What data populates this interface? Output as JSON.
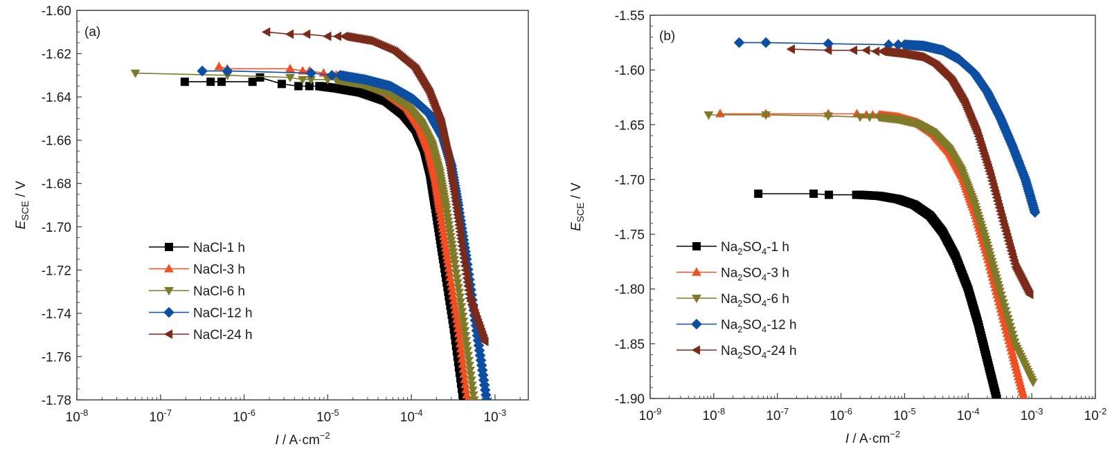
{
  "chart_data": [
    {
      "type": "line",
      "panel_label": "(a)",
      "xlabel": "I / A·cm⁻²",
      "xlabel_italic": "I",
      "xlabel_rest": " / A·cm",
      "xlabel_sup": "−2",
      "ylabel_italic": "E",
      "ylabel_sub": "SCE",
      "ylabel_rest": " / V",
      "xscale": "log",
      "xlim": [
        1e-08,
        0.0025
      ],
      "ylim": [
        -1.78,
        -1.6
      ],
      "xticks": [
        {
          "base": "10",
          "exp": "-8",
          "value": 1e-08
        },
        {
          "base": "10",
          "exp": "-7",
          "value": 1e-07
        },
        {
          "base": "10",
          "exp": "-6",
          "value": 1e-06
        },
        {
          "base": "10",
          "exp": "-5",
          "value": 1e-05
        },
        {
          "base": "10",
          "exp": "-4",
          "value": 0.0001
        },
        {
          "base": "10",
          "exp": "-3",
          "value": 0.001
        }
      ],
      "yticks": [
        "-1.60",
        "-1.62",
        "-1.64",
        "-1.66",
        "-1.68",
        "-1.70",
        "-1.72",
        "-1.74",
        "-1.76",
        "-1.78"
      ],
      "ytick_values": [
        -1.6,
        -1.62,
        -1.64,
        -1.66,
        -1.68,
        -1.7,
        -1.72,
        -1.74,
        -1.76,
        -1.78
      ],
      "legend_position": "lower-left",
      "grid": false,
      "series": [
        {
          "name": "NaCl-1 h",
          "marker": "square",
          "color": "#000000",
          "sparse_points": [
            [
              -6.71,
              -1.633
            ],
            [
              -6.4,
              -1.633
            ],
            [
              -6.27,
              -1.633
            ],
            [
              -5.9,
              -1.633
            ],
            [
              -5.81,
              -1.631
            ],
            [
              -5.55,
              -1.634
            ],
            [
              -5.35,
              -1.635
            ],
            [
              -5.22,
              -1.635
            ]
          ],
          "curve": [
            [
              -5.1,
              -1.635
            ],
            [
              -4.9,
              -1.636
            ],
            [
              -4.6,
              -1.638
            ],
            [
              -4.3,
              -1.642
            ],
            [
              -4.1,
              -1.648
            ],
            [
              -3.95,
              -1.655
            ],
            [
              -3.85,
              -1.664
            ],
            [
              -3.78,
              -1.675
            ],
            [
              -3.72,
              -1.69
            ],
            [
              -3.62,
              -1.715
            ],
            [
              -3.5,
              -1.745
            ],
            [
              -3.38,
              -1.78
            ]
          ]
        },
        {
          "name": "NaCl-3 h",
          "marker": "triangle-up",
          "color": "#F04E23",
          "sparse_points": [
            [
              -6.3,
              -1.626
            ],
            [
              -6.2,
              -1.627
            ],
            [
              -5.45,
              -1.627
            ],
            [
              -5.3,
              -1.628
            ],
            [
              -5.22,
              -1.628
            ],
            [
              -5.05,
              -1.629
            ]
          ],
          "curve": [
            [
              -4.9,
              -1.63
            ],
            [
              -4.6,
              -1.633
            ],
            [
              -4.3,
              -1.638
            ],
            [
              -4.05,
              -1.645
            ],
            [
              -3.9,
              -1.654
            ],
            [
              -3.8,
              -1.664
            ],
            [
              -3.72,
              -1.677
            ],
            [
              -3.66,
              -1.692
            ],
            [
              -3.56,
              -1.717
            ],
            [
              -3.44,
              -1.747
            ],
            [
              -3.33,
              -1.78
            ]
          ]
        },
        {
          "name": "NaCl-6 h",
          "marker": "triangle-down",
          "color": "#7F7A29",
          "sparse_points": [
            [
              -7.3,
              -1.629
            ],
            [
              -6.2,
              -1.63
            ],
            [
              -5.45,
              -1.631
            ],
            [
              -5.3,
              -1.632
            ],
            [
              -5.2,
              -1.632
            ],
            [
              -5.0,
              -1.632
            ]
          ],
          "curve": [
            [
              -4.9,
              -1.632
            ],
            [
              -4.6,
              -1.634
            ],
            [
              -4.3,
              -1.638
            ],
            [
              -4.05,
              -1.644
            ],
            [
              -3.88,
              -1.652
            ],
            [
              -3.75,
              -1.662
            ],
            [
              -3.66,
              -1.675
            ],
            [
              -3.58,
              -1.692
            ],
            [
              -3.48,
              -1.717
            ],
            [
              -3.36,
              -1.748
            ],
            [
              -3.25,
              -1.78
            ]
          ]
        },
        {
          "name": "NaCl-12 h",
          "marker": "diamond",
          "color": "#0B4EA2",
          "sparse_points": [
            [
              -6.5,
              -1.628
            ],
            [
              -6.2,
              -1.628
            ],
            [
              -5.2,
              -1.629
            ],
            [
              -4.95,
              -1.63
            ]
          ],
          "curve": [
            [
              -4.85,
              -1.63
            ],
            [
              -4.55,
              -1.632
            ],
            [
              -4.25,
              -1.635
            ],
            [
              -3.98,
              -1.641
            ],
            [
              -3.78,
              -1.648
            ],
            [
              -3.62,
              -1.659
            ],
            [
              -3.52,
              -1.672
            ],
            [
              -3.44,
              -1.69
            ],
            [
              -3.34,
              -1.715
            ],
            [
              -3.22,
              -1.748
            ],
            [
              -3.1,
              -1.78
            ]
          ]
        },
        {
          "name": "NaCl-24 h",
          "marker": "triangle-left",
          "color": "#7B2A1A",
          "sparse_points": [
            [
              -5.73,
              -1.61
            ],
            [
              -5.45,
              -1.611
            ],
            [
              -5.25,
              -1.611
            ],
            [
              -5.0,
              -1.612
            ],
            [
              -4.88,
              -1.612
            ]
          ],
          "curve": [
            [
              -4.8,
              -1.612
            ],
            [
              -4.5,
              -1.614
            ],
            [
              -4.2,
              -1.619
            ],
            [
              -3.95,
              -1.627
            ],
            [
              -3.78,
              -1.638
            ],
            [
              -3.64,
              -1.652
            ],
            [
              -3.55,
              -1.668
            ],
            [
              -3.48,
              -1.685
            ],
            [
              -3.4,
              -1.707
            ],
            [
              -3.3,
              -1.733
            ],
            [
              -3.12,
              -1.753
            ]
          ]
        }
      ]
    },
    {
      "type": "line",
      "panel_label": "(b)",
      "xlabel": "I / A·cm⁻²",
      "xlabel_italic": "I",
      "xlabel_rest": " / A·cm",
      "xlabel_sup": "−2",
      "ylabel_italic": "E",
      "ylabel_sub": "SCE",
      "ylabel_rest": " / V",
      "xscale": "log",
      "xlim": [
        1e-09,
        0.01
      ],
      "ylim": [
        -1.9,
        -1.55
      ],
      "xticks": [
        {
          "base": "10",
          "exp": "-9",
          "value": 1e-09
        },
        {
          "base": "10",
          "exp": "-8",
          "value": 1e-08
        },
        {
          "base": "10",
          "exp": "-7",
          "value": 1e-07
        },
        {
          "base": "10",
          "exp": "-6",
          "value": 1e-06
        },
        {
          "base": "10",
          "exp": "-5",
          "value": 1e-05
        },
        {
          "base": "10",
          "exp": "-4",
          "value": 0.0001
        },
        {
          "base": "10",
          "exp": "-3",
          "value": 0.001
        },
        {
          "base": "10",
          "exp": "-2",
          "value": 0.01
        }
      ],
      "yticks": [
        "-1.55",
        "-1.60",
        "-1.65",
        "-1.70",
        "-1.75",
        "-1.80",
        "-1.85",
        "-1.90"
      ],
      "ytick_values": [
        -1.55,
        -1.6,
        -1.65,
        -1.7,
        -1.75,
        -1.8,
        -1.85,
        -1.9
      ],
      "legend_position": "lower-left",
      "grid": false,
      "series": [
        {
          "name": "Na2SO4-1 h",
          "label_main": "Na",
          "label_sub1": "2",
          "label_mid": "SO",
          "label_sub2": "4",
          "label_tail": "-1 h",
          "marker": "square",
          "color": "#000000",
          "sparse_points": [
            [
              -7.3,
              -1.713
            ],
            [
              -6.43,
              -1.713
            ],
            [
              -6.19,
              -1.714
            ],
            [
              -5.76,
              -1.714
            ]
          ],
          "curve": [
            [
              -5.7,
              -1.714
            ],
            [
              -5.4,
              -1.715
            ],
            [
              -5.1,
              -1.718
            ],
            [
              -4.85,
              -1.723
            ],
            [
              -4.6,
              -1.733
            ],
            [
              -4.4,
              -1.748
            ],
            [
              -4.2,
              -1.77
            ],
            [
              -4.0,
              -1.8
            ],
            [
              -3.85,
              -1.83
            ],
            [
              -3.7,
              -1.865
            ],
            [
              -3.55,
              -1.9
            ]
          ]
        },
        {
          "name": "Na2SO4-3 h",
          "label_main": "Na",
          "label_sub1": "2",
          "label_mid": "SO",
          "label_sub2": "4",
          "label_tail": "-3 h",
          "marker": "triangle-up",
          "color": "#F04E23",
          "sparse_points": [
            [
              -7.9,
              -1.64
            ],
            [
              -7.18,
              -1.64
            ],
            [
              -6.2,
              -1.64
            ],
            [
              -5.75,
              -1.64
            ],
            [
              -5.6,
              -1.641
            ],
            [
              -5.5,
              -1.641
            ]
          ],
          "curve": [
            [
              -5.4,
              -1.641
            ],
            [
              -5.1,
              -1.643
            ],
            [
              -4.8,
              -1.648
            ],
            [
              -4.55,
              -1.658
            ],
            [
              -4.3,
              -1.675
            ],
            [
              -4.1,
              -1.697
            ],
            [
              -3.9,
              -1.73
            ],
            [
              -3.7,
              -1.77
            ],
            [
              -3.5,
              -1.815
            ],
            [
              -3.3,
              -1.86
            ],
            [
              -3.12,
              -1.9
            ]
          ]
        },
        {
          "name": "Na2SO4-6 h",
          "label_main": "Na",
          "label_sub1": "2",
          "label_mid": "SO",
          "label_sub2": "4",
          "label_tail": "-6 h",
          "marker": "triangle-down",
          "color": "#7F7A29",
          "sparse_points": [
            [
              -8.08,
              -1.641
            ],
            [
              -7.18,
              -1.641
            ],
            [
              -6.2,
              -1.642
            ],
            [
              -5.7,
              -1.643
            ],
            [
              -5.55,
              -1.643
            ]
          ],
          "curve": [
            [
              -5.4,
              -1.643
            ],
            [
              -5.1,
              -1.645
            ],
            [
              -4.8,
              -1.649
            ],
            [
              -4.55,
              -1.657
            ],
            [
              -4.3,
              -1.672
            ],
            [
              -4.1,
              -1.692
            ],
            [
              -3.9,
              -1.722
            ],
            [
              -3.7,
              -1.76
            ],
            [
              -3.5,
              -1.802
            ],
            [
              -3.25,
              -1.852
            ],
            [
              -2.98,
              -1.885
            ]
          ]
        },
        {
          "name": "Na2SO4-12 h",
          "label_main": "Na",
          "label_sub1": "2",
          "label_mid": "SO",
          "label_sub2": "4",
          "label_tail": "-12 h",
          "marker": "diamond",
          "color": "#0B4EA2",
          "sparse_points": [
            [
              -7.6,
              -1.575
            ],
            [
              -7.18,
              -1.575
            ],
            [
              -6.2,
              -1.576
            ],
            [
              -5.25,
              -1.577
            ],
            [
              -5.1,
              -1.577
            ]
          ],
          "curve": [
            [
              -5.0,
              -1.577
            ],
            [
              -4.7,
              -1.578
            ],
            [
              -4.4,
              -1.582
            ],
            [
              -4.15,
              -1.59
            ],
            [
              -3.9,
              -1.603
            ],
            [
              -3.7,
              -1.62
            ],
            [
              -3.5,
              -1.643
            ],
            [
              -3.3,
              -1.67
            ],
            [
              -3.1,
              -1.7
            ],
            [
              -2.95,
              -1.73
            ]
          ]
        },
        {
          "name": "Na2SO4-24 h",
          "label_main": "Na",
          "label_sub1": "2",
          "label_mid": "SO",
          "label_sub2": "4",
          "label_tail": "-24 h",
          "marker": "triangle-left",
          "color": "#7B2A1A",
          "sparse_points": [
            [
              -6.78,
              -1.581
            ],
            [
              -6.2,
              -1.582
            ],
            [
              -5.8,
              -1.582
            ],
            [
              -5.6,
              -1.582
            ],
            [
              -5.45,
              -1.583
            ]
          ],
          "curve": [
            [
              -5.35,
              -1.583
            ],
            [
              -5.05,
              -1.585
            ],
            [
              -4.75,
              -1.588
            ],
            [
              -4.5,
              -1.596
            ],
            [
              -4.25,
              -1.61
            ],
            [
              -4.05,
              -1.63
            ],
            [
              -3.85,
              -1.658
            ],
            [
              -3.65,
              -1.695
            ],
            [
              -3.45,
              -1.738
            ],
            [
              -3.25,
              -1.78
            ],
            [
              -3.03,
              -1.805
            ]
          ]
        }
      ]
    }
  ]
}
